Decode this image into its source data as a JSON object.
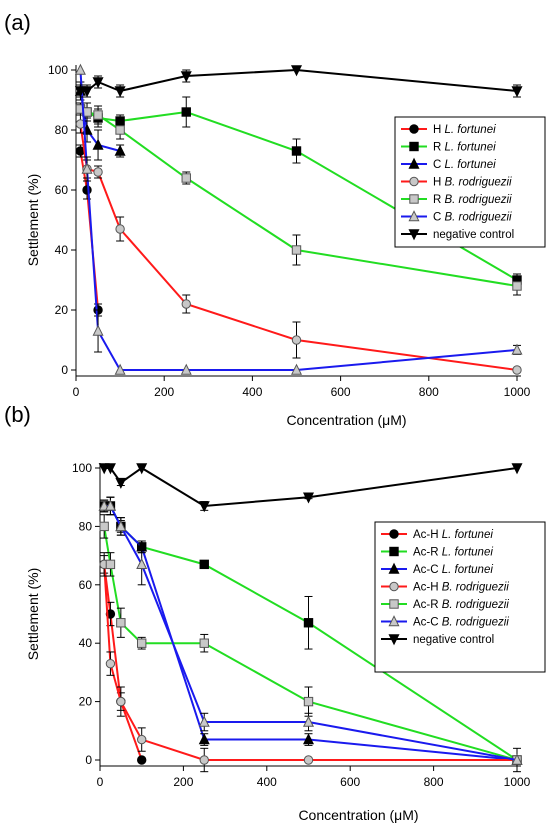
{
  "chart_data": [
    {
      "panel_label": "(a)",
      "type": "line",
      "xlabel": "Concentration (μM)",
      "ylabel": "Settlement (%)",
      "xlim": [
        0,
        1000
      ],
      "ylim": [
        0,
        100
      ],
      "xticks": [
        "0",
        "200",
        "400",
        "600",
        "800",
        "1000"
      ],
      "yticks": [
        "0",
        "20",
        "40",
        "60",
        "80",
        "100"
      ],
      "legend_position": "right",
      "series": [
        {
          "name": "H L. fortunei",
          "prefix": "H ",
          "italic": "L. fortunei",
          "color": "#ff1a1a",
          "marker": "circle",
          "fill": "#000000",
          "x": [
            10,
            25,
            50
          ],
          "y": [
            73,
            60,
            20
          ],
          "err": [
            2,
            3,
            2
          ]
        },
        {
          "name": "R L. fortunei",
          "prefix": "R ",
          "italic": "L. fortunei",
          "color": "#22dd22",
          "marker": "square",
          "fill": "#000000",
          "x": [
            10,
            25,
            50,
            100,
            250,
            500,
            1000
          ],
          "y": [
            87,
            86,
            84,
            83,
            86,
            73,
            30
          ],
          "err": [
            2,
            3,
            3,
            2,
            5,
            4,
            2
          ]
        },
        {
          "name": "C L. fortunei",
          "prefix": "C ",
          "italic": "L. fortunei",
          "color": "#1a1aee",
          "marker": "triangle",
          "fill": "#000000",
          "x": [
            10,
            25,
            50,
            100
          ],
          "y": [
            93,
            80,
            75,
            73
          ],
          "err": [
            3,
            4,
            5,
            2
          ]
        },
        {
          "name": "H B. rodriguezii",
          "prefix": "H ",
          "italic": "B. rodriguezii",
          "color": "#ff1a1a",
          "marker": "circle",
          "fill": "#c8c8c8",
          "x": [
            10,
            25,
            50,
            100,
            250,
            500,
            1000
          ],
          "y": [
            82,
            67,
            66,
            47,
            22,
            10,
            0
          ],
          "err": [
            3,
            3,
            2,
            4,
            3,
            6,
            0
          ]
        },
        {
          "name": "R B. rodriguezii",
          "prefix": "R ",
          "italic": "B. rodriguezii",
          "color": "#22dd22",
          "marker": "square",
          "fill": "#c8c8c8",
          "x": [
            10,
            25,
            50,
            100,
            250,
            500,
            1000
          ],
          "y": [
            87,
            86,
            85,
            80,
            64,
            40,
            28
          ],
          "err": [
            2,
            3,
            3,
            3,
            2,
            5,
            3
          ]
        },
        {
          "name": "C B. rodriguezii",
          "prefix": "C ",
          "italic": "B. rodriguezii",
          "color": "#1a1aee",
          "marker": "triangle",
          "fill": "#c8c8c8",
          "x": [
            10,
            25,
            50,
            100,
            250,
            500,
            1000
          ],
          "y": [
            100,
            67,
            13,
            0,
            0,
            0,
            6.7
          ],
          "err": [
            0,
            4,
            7,
            0,
            0,
            0,
            1.5
          ]
        },
        {
          "name": "negative control",
          "prefix": "negative control",
          "italic": "",
          "color": "#000000",
          "marker": "triangle-down",
          "fill": "#000000",
          "x": [
            10,
            25,
            50,
            100,
            250,
            500,
            1000
          ],
          "y": [
            93,
            93,
            96,
            93,
            98,
            100,
            93
          ],
          "err": [
            2,
            2,
            2,
            2,
            2,
            0,
            2
          ]
        }
      ]
    },
    {
      "panel_label": "(b)",
      "type": "line",
      "xlabel": "Concentration (μM)",
      "ylabel": "Settlement (%)",
      "xlim": [
        0,
        1000
      ],
      "ylim": [
        0,
        100
      ],
      "xticks": [
        "0",
        "200",
        "400",
        "600",
        "800",
        "1000"
      ],
      "yticks": [
        "0",
        "20",
        "40",
        "60",
        "80",
        "100"
      ],
      "legend_position": "right",
      "series": [
        {
          "name": "Ac-H L. fortunei",
          "prefix": "Ac-H ",
          "italic": "L. fortunei",
          "color": "#ff1a1a",
          "marker": "circle",
          "fill": "#000000",
          "x": [
            10,
            25,
            50,
            100
          ],
          "y": [
            67,
            50,
            20,
            0
          ],
          "err": [
            3,
            4,
            3,
            0
          ]
        },
        {
          "name": "Ac-R L. fortunei",
          "prefix": "Ac-R ",
          "italic": "L. fortunei",
          "color": "#22dd22",
          "marker": "square",
          "fill": "#000000",
          "x": [
            10,
            25,
            50,
            100,
            250,
            500,
            1000
          ],
          "y": [
            87,
            87,
            80,
            73,
            67,
            47,
            0
          ],
          "err": [
            2,
            3,
            3,
            2,
            1,
            9,
            0
          ]
        },
        {
          "name": "Ac-C L. fortunei",
          "prefix": "Ac-C ",
          "italic": "L. fortunei",
          "color": "#1a1aee",
          "marker": "triangle",
          "fill": "#000000",
          "x": [
            10,
            25,
            50,
            100,
            250,
            500,
            1000
          ],
          "y": [
            87,
            87,
            80,
            73,
            7,
            7,
            0
          ],
          "err": [
            2,
            3,
            2,
            2,
            2,
            2,
            0
          ]
        },
        {
          "name": "Ac-H B. rodriguezii",
          "prefix": "Ac-H ",
          "italic": "B. rodriguezii",
          "color": "#ff1a1a",
          "marker": "circle",
          "fill": "#c8c8c8",
          "x": [
            10,
            25,
            50,
            100,
            250,
            500,
            1000
          ],
          "y": [
            67,
            33,
            20,
            7,
            0,
            0,
            0
          ],
          "err": [
            4,
            4,
            5,
            4,
            4,
            0,
            0
          ]
        },
        {
          "name": "Ac-R B. rodriguezii",
          "prefix": "Ac-R ",
          "italic": "B. rodriguezii",
          "color": "#22dd22",
          "marker": "square",
          "fill": "#c8c8c8",
          "x": [
            10,
            25,
            50,
            100,
            250,
            500,
            1000
          ],
          "y": [
            80,
            67,
            47,
            40,
            40,
            20,
            0
          ],
          "err": [
            4,
            4,
            5,
            2,
            3,
            5,
            4
          ]
        },
        {
          "name": "Ac-C B. rodriguezii",
          "prefix": "Ac-C ",
          "italic": "B. rodriguezii",
          "color": "#1a1aee",
          "marker": "triangle",
          "fill": "#c8c8c8",
          "x": [
            10,
            25,
            50,
            100,
            250,
            500,
            1000
          ],
          "y": [
            87,
            87,
            80,
            67,
            13,
            13,
            0
          ],
          "err": [
            2,
            3,
            3,
            7,
            3,
            3,
            0
          ]
        },
        {
          "name": "negative control",
          "prefix": "negative control",
          "italic": "",
          "color": "#000000",
          "marker": "triangle-down",
          "fill": "#000000",
          "x": [
            10,
            25,
            50,
            100,
            250,
            500,
            1000
          ],
          "y": [
            100,
            100,
            95,
            100,
            87,
            90,
            100
          ],
          "err": [
            0,
            0,
            1,
            0,
            1.5,
            0.5,
            0
          ]
        }
      ]
    }
  ]
}
